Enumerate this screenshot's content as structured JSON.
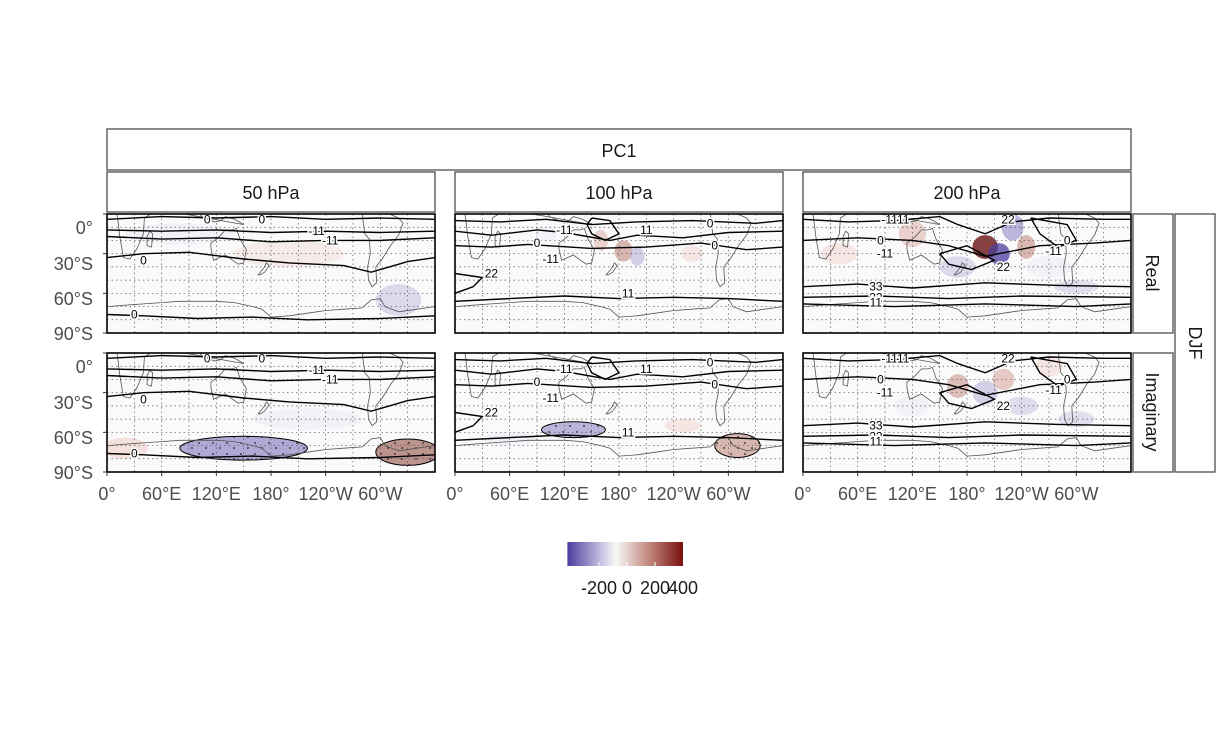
{
  "figure": {
    "title_strip": "PC1",
    "season_strip": "DJF",
    "columns": [
      "50 hPa",
      "100 hPa",
      "200 hPa"
    ],
    "rows": [
      "Real",
      "Imaginary"
    ],
    "x_ticks": [
      "0°",
      "60°E",
      "120°E",
      "180°",
      "120°W",
      "60°W"
    ],
    "y_ticks": [
      "0°",
      "30°S",
      "60°S",
      "90°S"
    ],
    "colors": {
      "negative": "#4a3d9e",
      "neutral": "#f7f7f7",
      "positive": "#7a1010",
      "panel_border": "#000000",
      "strip_border": "#4d4d4d"
    }
  },
  "legend": {
    "tick_labels": [
      "-200",
      "0",
      "200",
      "400"
    ]
  },
  "chart_data": {
    "type": "heatmap",
    "x": [
      0,
      60,
      120,
      180,
      240,
      300
    ],
    "y": [
      0,
      -30,
      -60,
      -90
    ],
    "xlim": [
      0,
      360
    ],
    "ylim": [
      -90,
      0
    ],
    "fill_range": [
      -300,
      500
    ],
    "contour_labels": {
      "50 hPa": [
        "0",
        "0",
        "-11",
        "-11",
        "0",
        "0"
      ],
      "100 hPa": [
        "-11",
        "11",
        "0",
        "0",
        "-11",
        "0",
        "22",
        "11"
      ],
      "200 hPa": [
        "-11",
        "11",
        "22",
        "0",
        "-11",
        "0",
        "-11",
        "22",
        "33",
        "22",
        "11"
      ]
    }
  }
}
